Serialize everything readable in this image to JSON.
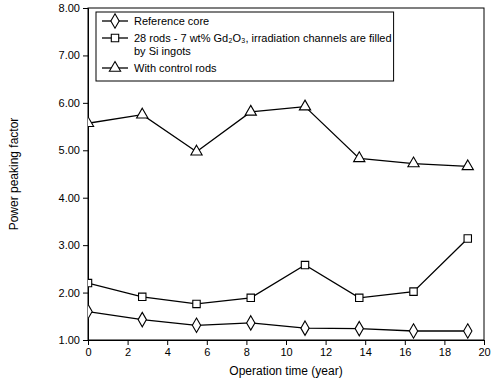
{
  "chart_data": {
    "type": "line",
    "x_label": "Operation time (year)",
    "y_label": "Power peaking factor",
    "x": [
      0,
      2.74,
      5.48,
      8.22,
      10.96,
      13.7,
      16.44,
      19.18
    ],
    "xlim": [
      0,
      20
    ],
    "xticks": [
      0,
      2,
      4,
      6,
      8,
      10,
      12,
      14,
      16,
      18,
      20
    ],
    "ylim": [
      1,
      8
    ],
    "yticks": [
      {
        "value": 1,
        "label": "1.00"
      },
      {
        "value": 2,
        "label": "2.00"
      },
      {
        "value": 3,
        "label": "3.00"
      },
      {
        "value": 4,
        "label": "4.00"
      },
      {
        "value": 5,
        "label": "5.00"
      },
      {
        "value": 6,
        "label": "6.00"
      },
      {
        "value": 7,
        "label": "7.00"
      },
      {
        "value": 8,
        "label": "8.00"
      }
    ],
    "grid": false,
    "legend": "upper left",
    "series": [
      {
        "name": "Reference core",
        "color": "#000000",
        "marker": "diamond",
        "line_style": "solid",
        "values": [
          1.6,
          1.43,
          1.31,
          1.36,
          1.25,
          1.24,
          1.19,
          1.19
        ]
      },
      {
        "name": "28 rods - 7 wt% Gd₂O₃, irradiation channels are filled by Si ingots",
        "color": "#000000",
        "marker": "square",
        "line_style": "solid",
        "values": [
          2.2,
          1.91,
          1.76,
          1.89,
          2.58,
          1.89,
          2.02,
          3.14
        ]
      },
      {
        "name": "With control rods",
        "color": "#000000",
        "marker": "triangle",
        "line_style": "solid",
        "values": [
          5.57,
          5.75,
          4.97,
          5.81,
          5.92,
          4.83,
          4.72,
          4.66
        ]
      }
    ]
  }
}
